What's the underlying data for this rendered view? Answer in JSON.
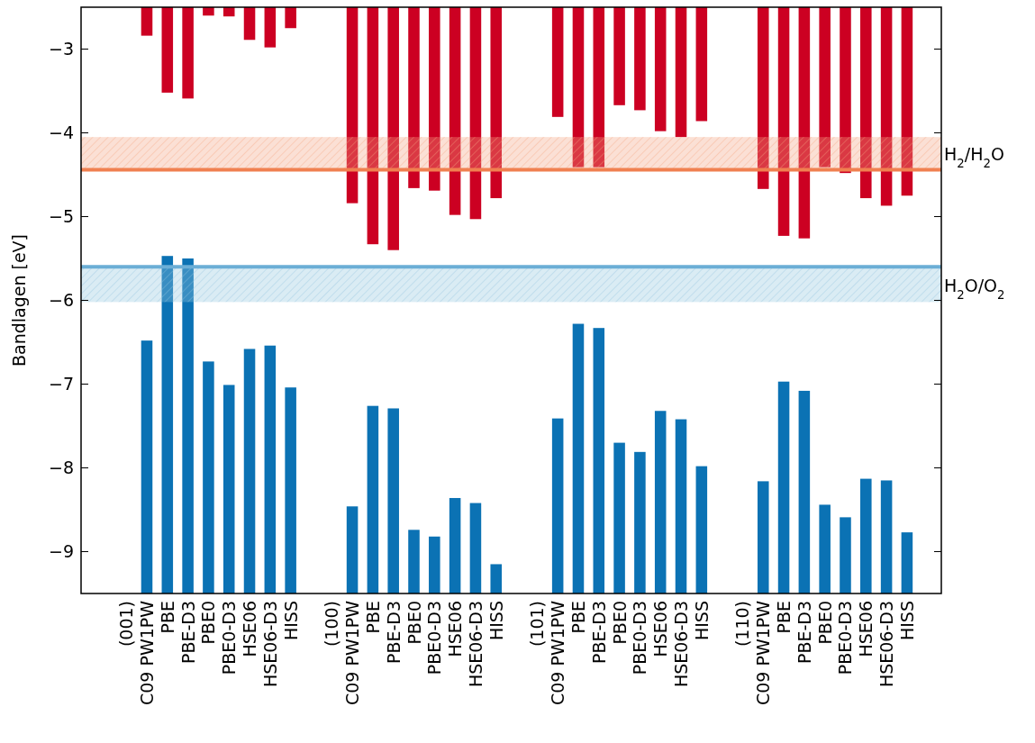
{
  "chart_data": {
    "type": "bar",
    "ylabel": "Bandlagen [eV]",
    "categories": [
      null,
      null,
      "(001)\nC09 PW1PW",
      "PBE",
      "PBE-D3",
      "PBE0",
      "PBE0-D3",
      "HSE06",
      "HSE06-D3",
      "HISS",
      null,
      null,
      "(100)\nC09 PW1PW",
      "PBE",
      "PBE-D3",
      "PBE0",
      "PBE0-D3",
      "HSE06",
      "HSE06-D3",
      "HISS",
      null,
      null,
      "(101)\nC09 PW1PW",
      "PBE",
      "PBE-D3",
      "PBE0",
      "PBE0-D3",
      "HSE06",
      "HSE06-D3",
      "HISS",
      null,
      null,
      "(110)\nC09 PW1PW",
      "PBE",
      "PBE-D3",
      "PBE0",
      "PBE0-D3",
      "HSE06",
      "HSE06-D3",
      "HISS",
      null
    ],
    "series": [
      {
        "color": "#cc0022",
        "base": [
          null,
          null,
          -2.5,
          -2.5,
          -2.5,
          -2.5,
          -2.5,
          -2.5,
          -2.5,
          -2.5,
          null,
          null,
          -2.5,
          -2.5,
          -2.5,
          -2.5,
          -2.5,
          -2.5,
          -2.5,
          -2.5,
          null,
          null,
          -2.5,
          -2.5,
          -2.5,
          -2.5,
          -2.5,
          -2.5,
          -2.5,
          -2.5,
          null,
          null,
          -2.5,
          -2.5,
          -2.5,
          -2.5,
          -2.5,
          -2.5,
          -2.5,
          -2.5,
          null
        ],
        "values": [
          null,
          null,
          -0.34,
          -1.02,
          -1.09,
          -0.1,
          -0.11,
          -0.39,
          -0.48,
          -0.25,
          null,
          null,
          -2.34,
          -2.83,
          -2.9,
          -2.16,
          -2.19,
          -2.48,
          -2.53,
          -2.28,
          null,
          null,
          -1.31,
          -1.91,
          -1.91,
          -1.17,
          -1.23,
          -1.48,
          -1.55,
          -1.36,
          null,
          null,
          -2.17,
          -2.73,
          -2.76,
          -1.91,
          -1.98,
          -2.28,
          -2.37,
          -2.25,
          null
        ]
      },
      {
        "color": "#0b72b4",
        "base": [
          null,
          null,
          -9.5,
          -9.5,
          -9.5,
          -9.5,
          -9.5,
          -9.5,
          -9.5,
          -9.5,
          null,
          null,
          -9.5,
          -9.5,
          -9.5,
          -9.5,
          -9.5,
          -9.5,
          -9.5,
          -9.5,
          null,
          null,
          -9.5,
          -9.5,
          -9.5,
          -9.5,
          -9.5,
          -9.5,
          -9.5,
          -9.5,
          null,
          null,
          -9.5,
          -9.5,
          -9.5,
          -9.5,
          -9.5,
          -9.5,
          -9.5,
          -9.5,
          null
        ],
        "values": [
          null,
          null,
          3.02,
          4.03,
          4.0,
          2.77,
          2.49,
          2.92,
          2.96,
          2.46,
          null,
          null,
          1.04,
          2.24,
          2.21,
          0.76,
          0.68,
          1.14,
          1.08,
          0.35,
          null,
          null,
          2.09,
          3.22,
          3.17,
          1.8,
          1.69,
          2.18,
          2.08,
          1.52,
          null,
          null,
          1.34,
          2.53,
          2.42,
          1.06,
          0.91,
          1.37,
          1.35,
          0.73,
          null
        ]
      }
    ],
    "ylim": [
      -9.5,
      -2.5
    ],
    "yticks": [
      {
        "value": -9,
        "label": "−9"
      },
      {
        "value": -8,
        "label": "−8"
      },
      {
        "value": -7,
        "label": "−7"
      },
      {
        "value": -6,
        "label": "−6"
      },
      {
        "value": -5,
        "label": "−5"
      },
      {
        "value": -4,
        "label": "−4"
      },
      {
        "value": -3,
        "label": "−3"
      }
    ],
    "bands": [
      {
        "axis": "y",
        "from": -4.44,
        "to": -4.05,
        "label": "H$_{2}$/H$_{2}$O",
        "color": "#f4a582"
      },
      {
        "axis": "y",
        "from": -6.02,
        "to": -5.6,
        "label": "H$_{2}$O/O$_{2}$",
        "color": "#92c5de"
      }
    ],
    "ref_lines": [
      {
        "axis": "y",
        "value": -4.44,
        "color": "#f08050"
      },
      {
        "axis": "y",
        "value": -5.6,
        "color": "#6baed6"
      }
    ],
    "grid": false
  }
}
